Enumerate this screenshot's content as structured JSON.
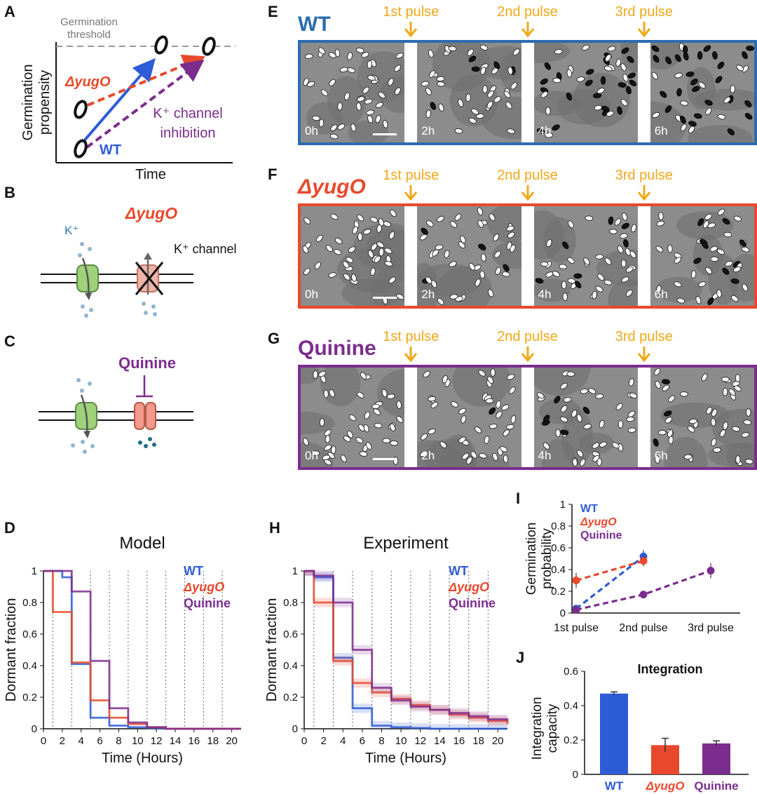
{
  "panels": {
    "A": {
      "label": "A",
      "threshold_label_1": "Germination",
      "threshold_label_2": "threshold",
      "ylabel_1": "Germination",
      "ylabel_2": "propensity",
      "xlabel": "Time",
      "mutant": "ΔyugO",
      "wt": "WT",
      "kchan_1": "K⁺ channel",
      "kchan_2": "inhibition"
    },
    "B": {
      "label": "B",
      "title": "ΔyugO",
      "ion": "K⁺",
      "channel": "K⁺ channel"
    },
    "C": {
      "label": "C",
      "title": "Quinine"
    },
    "E": {
      "label": "E",
      "title": "WT",
      "color": "#2b6cb0"
    },
    "F": {
      "label": "F",
      "title": "ΔyugO",
      "color": "#e8492c"
    },
    "G": {
      "label": "G",
      "title": "Quinine",
      "color": "#7b2d8e"
    },
    "D": {
      "label": "D"
    },
    "H": {
      "label": "H"
    },
    "I": {
      "label": "I"
    },
    "J": {
      "label": "J"
    }
  },
  "pulses": [
    "1st pulse",
    "2nd pulse",
    "3rd pulse"
  ],
  "timepoints": [
    "0h",
    "2h",
    "4h",
    "6h"
  ],
  "colors": {
    "wt": "#2e5bd6",
    "mutant": "#e8492c",
    "quinine": "#7b2d8e",
    "pulse": "#f0a818"
  },
  "chart_data": [
    {
      "id": "D",
      "type": "line",
      "title": "Model",
      "xlabel": "Time (Hours)",
      "ylabel": "Dormant fraction",
      "xlim": [
        0,
        21
      ],
      "ylim": [
        0,
        1
      ],
      "xticks": [
        "0",
        "2",
        "4",
        "6",
        "8",
        "10",
        "12",
        "14",
        "16",
        "18",
        "20"
      ],
      "yticks": [
        "0",
        "0.2",
        "0.4",
        "0.6",
        "0.8",
        "1"
      ],
      "pulse_times": [
        1,
        3,
        5,
        7,
        9,
        11,
        13,
        15,
        17,
        19
      ],
      "series": [
        {
          "name": "WT",
          "x": [
            0,
            2,
            3,
            5,
            7,
            9,
            11,
            13,
            21
          ],
          "y": [
            1,
            0.96,
            0.41,
            0.07,
            0.02,
            0.01,
            0.005,
            0,
            0
          ]
        },
        {
          "name": "ΔyugO",
          "x": [
            0,
            1,
            3,
            5,
            7,
            9,
            11,
            13,
            21
          ],
          "y": [
            1,
            0.74,
            0.42,
            0.18,
            0.07,
            0.03,
            0.01,
            0,
            0
          ]
        },
        {
          "name": "Quinine",
          "x": [
            0,
            3,
            5,
            7,
            9,
            11,
            13,
            21
          ],
          "y": [
            1,
            0.87,
            0.43,
            0.13,
            0.04,
            0.01,
            0,
            0
          ]
        }
      ]
    },
    {
      "id": "H",
      "type": "line",
      "title": "Experiment",
      "xlabel": "Time (Hours)",
      "ylabel": "Dormant fraction",
      "xlim": [
        0,
        21
      ],
      "ylim": [
        0,
        1
      ],
      "xticks": [
        "0",
        "2",
        "4",
        "6",
        "8",
        "10",
        "12",
        "14",
        "16",
        "18",
        "20"
      ],
      "yticks": [
        "0",
        "0.2",
        "0.4",
        "0.6",
        "0.8",
        "1"
      ],
      "pulse_times": [
        1,
        3,
        5,
        7,
        9,
        11,
        13,
        15,
        17,
        19
      ],
      "series": [
        {
          "name": "WT",
          "x": [
            0,
            1,
            3,
            5,
            7,
            9,
            11,
            13,
            21
          ],
          "y": [
            1,
            0.96,
            0.45,
            0.13,
            0.02,
            0.01,
            0.005,
            0,
            0
          ]
        },
        {
          "name": "ΔyugO",
          "x": [
            0,
            1,
            3,
            5,
            7,
            9,
            11,
            13,
            15,
            17,
            19,
            21
          ],
          "y": [
            1,
            0.8,
            0.43,
            0.29,
            0.23,
            0.19,
            0.15,
            0.12,
            0.09,
            0.07,
            0.05,
            0.03
          ]
        },
        {
          "name": "Quinine",
          "x": [
            0,
            1,
            3,
            5,
            7,
            9,
            11,
            13,
            15,
            17,
            19,
            21
          ],
          "y": [
            1,
            0.97,
            0.8,
            0.5,
            0.26,
            0.18,
            0.14,
            0.12,
            0.1,
            0.08,
            0.06,
            0.05
          ]
        }
      ]
    },
    {
      "id": "I",
      "type": "line",
      "ylabel": "Germination probability",
      "categories": [
        "1st pulse",
        "2nd pulse",
        "3rd pulse"
      ],
      "ylim": [
        0,
        1
      ],
      "yticks": [
        "0",
        "0.2",
        "0.4",
        "0.6",
        "0.8",
        "1"
      ],
      "series": [
        {
          "name": "WT",
          "x": [
            0,
            1
          ],
          "y": [
            0.04,
            0.52
          ],
          "err": [
            0.02,
            0.06
          ]
        },
        {
          "name": "ΔyugO",
          "x": [
            0,
            1
          ],
          "y": [
            0.3,
            0.48
          ],
          "err": [
            0.07,
            0.05
          ]
        },
        {
          "name": "Quinine",
          "x": [
            0,
            1,
            2
          ],
          "y": [
            0.03,
            0.17,
            0.39
          ],
          "err": [
            0.02,
            0.02,
            0.07
          ]
        }
      ]
    },
    {
      "id": "J",
      "type": "bar",
      "title": "Integration",
      "ylabel": "Integration capacity",
      "categories": [
        "WT",
        "ΔyugO",
        "Quinine"
      ],
      "values": [
        0.47,
        0.17,
        0.18
      ],
      "err": [
        0.01,
        0.04,
        0.015
      ],
      "ylim": [
        0,
        0.6
      ],
      "yticks": [
        "0",
        "0.2",
        "0.4",
        "0.6"
      ]
    }
  ]
}
